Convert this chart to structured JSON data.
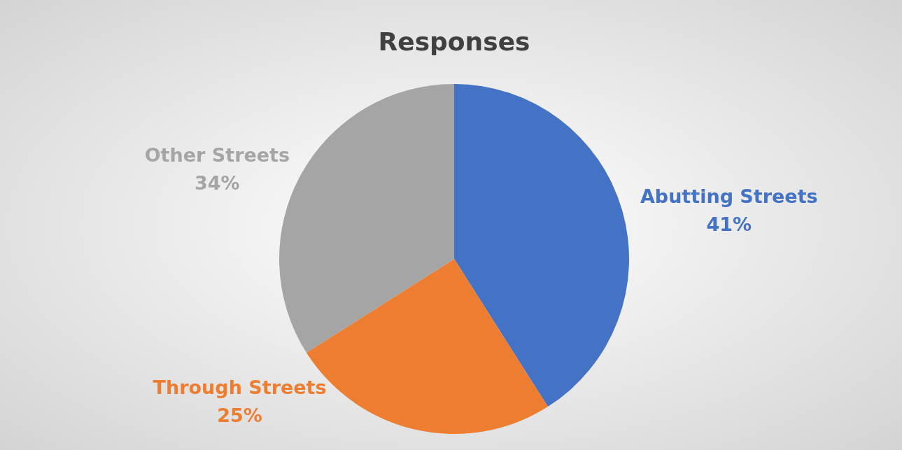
{
  "chart_data": {
    "type": "pie",
    "title": "Responses",
    "categories": [
      "Abutting Streets",
      "Through Streets",
      "Other Streets"
    ],
    "values": [
      41,
      25,
      34
    ],
    "colors": [
      "#4472c4",
      "#ed7d31",
      "#a5a5a5"
    ],
    "value_labels": [
      "41%",
      "25%",
      "34%"
    ],
    "legend": false
  }
}
